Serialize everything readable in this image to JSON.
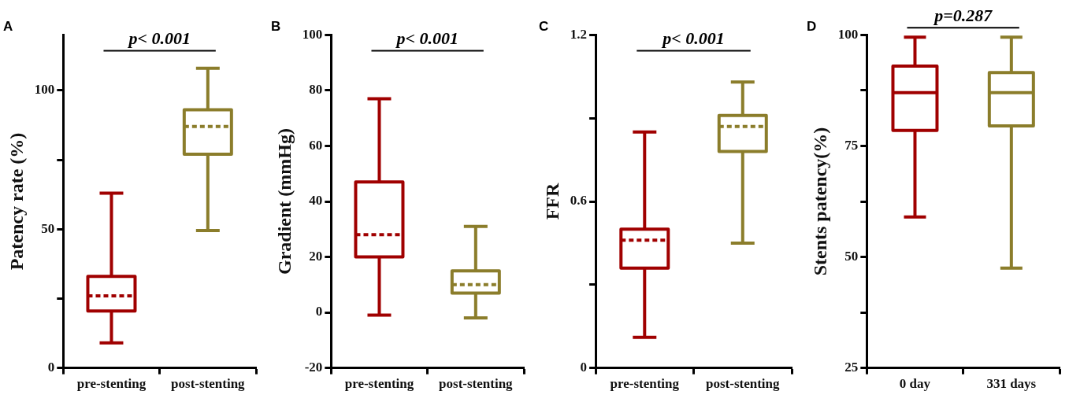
{
  "chart_data": [
    {
      "type": "box",
      "title": "A",
      "ylabel": "Patency rate (%)",
      "categories": [
        "pre-stenting",
        "post-stenting"
      ],
      "line_style": "dashed",
      "ylim": [
        0,
        120
      ],
      "yticks": [
        0,
        {
          "value": 25,
          "label": null
        },
        50,
        {
          "value": 75,
          "label": null
        },
        100
      ],
      "annotations": [
        "p< 0.001"
      ],
      "series": [
        {
          "color": "#a00000",
          "boxes": [
            {
              "low": 9,
              "q1": 20.5,
              "median": 26,
              "q3": 33,
              "high": 63
            },
            null
          ]
        },
        {
          "color": "#8b7d2b",
          "boxes": [
            null,
            {
              "low": 49.5,
              "q1": 77,
              "median": 87,
              "q3": 93,
              "high": 108
            }
          ]
        }
      ]
    },
    {
      "type": "box",
      "title": "B",
      "ylabel": "Gradient (mmHg)",
      "categories": [
        "pre-stenting",
        "post-stenting"
      ],
      "line_style": "dashed",
      "ylim": [
        -20,
        100
      ],
      "yticks": [
        -20,
        0,
        20,
        40,
        60,
        80,
        100
      ],
      "annotations": [
        "p< 0.001"
      ],
      "series": [
        {
          "color": "#a00000",
          "boxes": [
            {
              "low": -1,
              "q1": 20,
              "median": 28,
              "q3": 47,
              "high": 77
            },
            null
          ]
        },
        {
          "color": "#8b7d2b",
          "boxes": [
            null,
            {
              "low": -2,
              "q1": 7,
              "median": 10,
              "q3": 15,
              "high": 31
            }
          ]
        }
      ]
    },
    {
      "type": "box",
      "title": "C",
      "ylabel": "FFR",
      "categories": [
        "pre-stenting",
        "post-stenting"
      ],
      "line_style": "dashed",
      "ylim": [
        0,
        1.2
      ],
      "yticks": [
        0,
        {
          "value": 0.3,
          "label": null
        },
        0.6,
        {
          "value": 0.9,
          "label": null
        },
        1.2
      ],
      "annotations": [
        "p< 0.001"
      ],
      "series": [
        {
          "color": "#a00000",
          "boxes": [
            {
              "low": 0.11,
              "q1": 0.36,
              "median": 0.46,
              "q3": 0.5,
              "high": 0.85
            },
            null
          ]
        },
        {
          "color": "#8b7d2b",
          "boxes": [
            null,
            {
              "low": 0.45,
              "q1": 0.78,
              "median": 0.87,
              "q3": 0.91,
              "high": 1.03
            }
          ]
        }
      ]
    },
    {
      "type": "box",
      "title": "D",
      "ylabel": "Stents patency(%)",
      "categories": [
        "0 day",
        "331 days"
      ],
      "line_style": "solid",
      "ylim": [
        25,
        100
      ],
      "yticks": [
        25,
        {
          "value": 37.5,
          "label": null
        },
        50,
        {
          "value": 62.5,
          "label": null
        },
        75,
        {
          "value": 87.5,
          "label": null
        },
        100
      ],
      "annotations": [
        "p=0.287"
      ],
      "series": [
        {
          "color": "#a00000",
          "boxes": [
            {
              "low": 59,
              "q1": 78.5,
              "median": 87,
              "q3": 93,
              "high": 99.5
            },
            null
          ]
        },
        {
          "color": "#8b7d2b",
          "boxes": [
            null,
            {
              "low": 47.5,
              "q1": 79.5,
              "median": 87,
              "q3": 91.5,
              "high": 99.5
            }
          ]
        }
      ]
    }
  ]
}
